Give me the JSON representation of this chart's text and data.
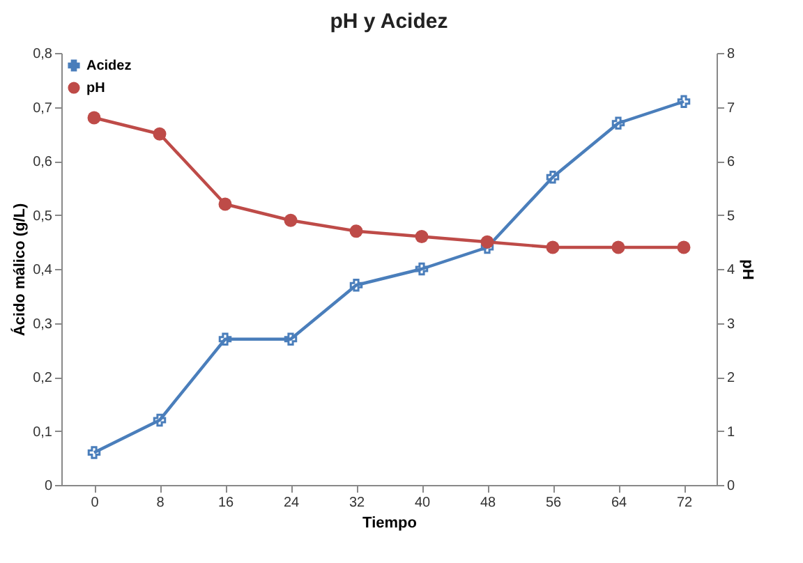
{
  "chart_data": {
    "type": "line",
    "title": "pH y Acidez",
    "xlabel": "Tiempo",
    "ylabel": "Ácido málico (g/L)",
    "y2label": "pH",
    "categories": [
      "0",
      "8",
      "16",
      "24",
      "32",
      "40",
      "48",
      "56",
      "64",
      "72"
    ],
    "series": [
      {
        "name": "Acidez",
        "color": "#4a7ebb",
        "marker": "cross",
        "values": [
          0.06,
          0.12,
          0.27,
          0.27,
          0.37,
          0.4,
          0.44,
          0.57,
          0.67,
          0.71
        ]
      },
      {
        "name": "pH",
        "color": "#be4b48",
        "marker": "circle",
        "axis": "y2",
        "values": [
          6.8,
          6.5,
          5.2,
          4.9,
          4.7,
          4.6,
          4.5,
          4.4,
          4.4,
          4.4
        ]
      }
    ],
    "ylim": [
      0,
      0.8
    ],
    "yticks": [
      {
        "value": 0,
        "label": "0"
      },
      {
        "value": 0.1,
        "label": "0,1"
      },
      {
        "value": 0.2,
        "label": "0,2"
      },
      {
        "value": 0.3,
        "label": "0,3"
      },
      {
        "value": 0.4,
        "label": "0,4"
      },
      {
        "value": 0.5,
        "label": "0,5"
      },
      {
        "value": 0.6,
        "label": "0,6"
      },
      {
        "value": 0.7,
        "label": "0,7"
      },
      {
        "value": 0.8,
        "label": "0,8"
      }
    ],
    "y2lim": [
      0,
      8
    ],
    "y2ticks": [
      0,
      1,
      2,
      3,
      4,
      5,
      6,
      7,
      8
    ],
    "grid": false,
    "legend": "top left",
    "line_style": "solid"
  }
}
